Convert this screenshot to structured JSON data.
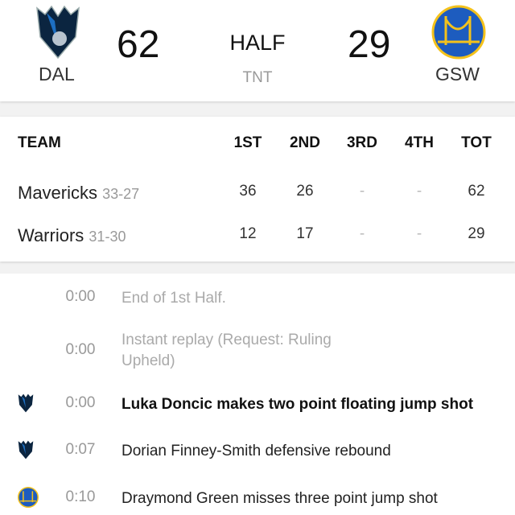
{
  "header": {
    "home": {
      "abbr": "DAL",
      "score": "62",
      "logo": "mavericks-logo"
    },
    "away": {
      "abbr": "GSW",
      "score": "29",
      "logo": "warriors-logo"
    },
    "status": "HALF",
    "network": "TNT"
  },
  "boxscore": {
    "headers": [
      "TEAM",
      "1ST",
      "2ND",
      "3RD",
      "4TH",
      "TOT"
    ],
    "rows": [
      {
        "team": "Mavericks",
        "record": "33-27",
        "q": [
          "36",
          "26",
          "-",
          "-"
        ],
        "total": "62"
      },
      {
        "team": "Warriors",
        "record": "31-30",
        "q": [
          "12",
          "17",
          "-",
          "-"
        ],
        "total": "29"
      }
    ]
  },
  "plays": [
    {
      "time": "0:00",
      "text": "End of 1st Half.",
      "team": "",
      "style": "muted"
    },
    {
      "time": "0:00",
      "text": "Instant replay (Request: Ruling Upheld)",
      "team": "",
      "style": "muted"
    },
    {
      "time": "0:00",
      "text": "Luka Doncic makes two point floating jump shot",
      "team": "DAL",
      "style": "bold"
    },
    {
      "time": "0:07",
      "text": "Dorian Finney-Smith defensive rebound",
      "team": "DAL",
      "style": "normal"
    },
    {
      "time": "0:10",
      "text": "Draymond Green misses three point jump shot",
      "team": "GSW",
      "style": "normal"
    }
  ],
  "colors": {
    "mavs_blue": "#1d6fc2",
    "mavs_navy": "#0b2540",
    "warriors_blue": "#1d5cbf",
    "warriors_gold": "#f4c21b"
  }
}
